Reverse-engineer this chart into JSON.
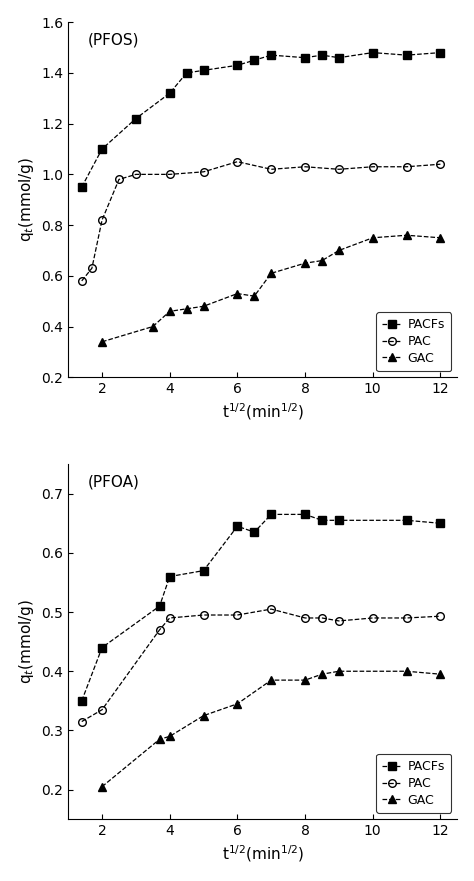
{
  "pfos": {
    "label": "(PFOS)",
    "PACFs": {
      "x": [
        1.4,
        2.0,
        3.0,
        4.0,
        4.5,
        5.0,
        6.0,
        6.5,
        7.0,
        8.0,
        8.5,
        9.0,
        10.0,
        11.0,
        12.0
      ],
      "y": [
        0.95,
        1.1,
        1.22,
        1.32,
        1.4,
        1.41,
        1.43,
        1.45,
        1.47,
        1.46,
        1.47,
        1.46,
        1.48,
        1.47,
        1.48
      ]
    },
    "PAC": {
      "x": [
        1.4,
        1.7,
        2.0,
        2.5,
        3.0,
        4.0,
        5.0,
        6.0,
        7.0,
        8.0,
        9.0,
        10.0,
        11.0,
        12.0
      ],
      "y": [
        0.58,
        0.63,
        0.82,
        0.98,
        1.0,
        1.0,
        1.01,
        1.05,
        1.02,
        1.03,
        1.02,
        1.03,
        1.03,
        1.04
      ]
    },
    "GAC": {
      "x": [
        2.0,
        3.5,
        4.0,
        4.5,
        5.0,
        6.0,
        6.5,
        7.0,
        8.0,
        8.5,
        9.0,
        10.0,
        11.0,
        12.0
      ],
      "y": [
        0.34,
        0.4,
        0.46,
        0.47,
        0.48,
        0.53,
        0.52,
        0.61,
        0.65,
        0.66,
        0.7,
        0.75,
        0.76,
        0.75
      ]
    },
    "ylim": [
      0.2,
      1.6
    ],
    "yticks": [
      0.2,
      0.4,
      0.6,
      0.8,
      1.0,
      1.2,
      1.4,
      1.6
    ]
  },
  "pfoa": {
    "label": "(PFOA)",
    "PACFs": {
      "x": [
        1.4,
        2.0,
        3.7,
        4.0,
        5.0,
        6.0,
        6.5,
        7.0,
        8.0,
        8.5,
        9.0,
        11.0,
        12.0
      ],
      "y": [
        0.35,
        0.44,
        0.51,
        0.56,
        0.57,
        0.645,
        0.635,
        0.665,
        0.665,
        0.655,
        0.655,
        0.655,
        0.65
      ]
    },
    "PAC": {
      "x": [
        1.4,
        2.0,
        3.7,
        4.0,
        5.0,
        6.0,
        7.0,
        8.0,
        8.5,
        9.0,
        10.0,
        11.0,
        12.0
      ],
      "y": [
        0.315,
        0.335,
        0.47,
        0.49,
        0.495,
        0.495,
        0.505,
        0.49,
        0.49,
        0.485,
        0.49,
        0.49,
        0.493
      ]
    },
    "GAC": {
      "x": [
        2.0,
        3.7,
        4.0,
        5.0,
        6.0,
        7.0,
        8.0,
        8.5,
        9.0,
        11.0,
        12.0
      ],
      "y": [
        0.205,
        0.285,
        0.29,
        0.325,
        0.345,
        0.385,
        0.385,
        0.395,
        0.4,
        0.4,
        0.395
      ]
    },
    "ylim": [
      0.15,
      0.75
    ],
    "yticks": [
      0.2,
      0.3,
      0.4,
      0.5,
      0.6,
      0.7
    ]
  },
  "xlim": [
    1.0,
    12.5
  ],
  "xticks": [
    2,
    4,
    6,
    8,
    10,
    12
  ],
  "xlabel": "t$^{1/2}$(min$^{1/2}$)",
  "ylabel": "q$_{t}$(mmol/g)",
  "marker_PACFs": "s",
  "marker_PAC": "o",
  "marker_GAC": "^",
  "color": "#000000",
  "linestyle": "--",
  "markersize": 5.5,
  "legend_entries": [
    "PACFs",
    "PAC",
    "GAC"
  ]
}
